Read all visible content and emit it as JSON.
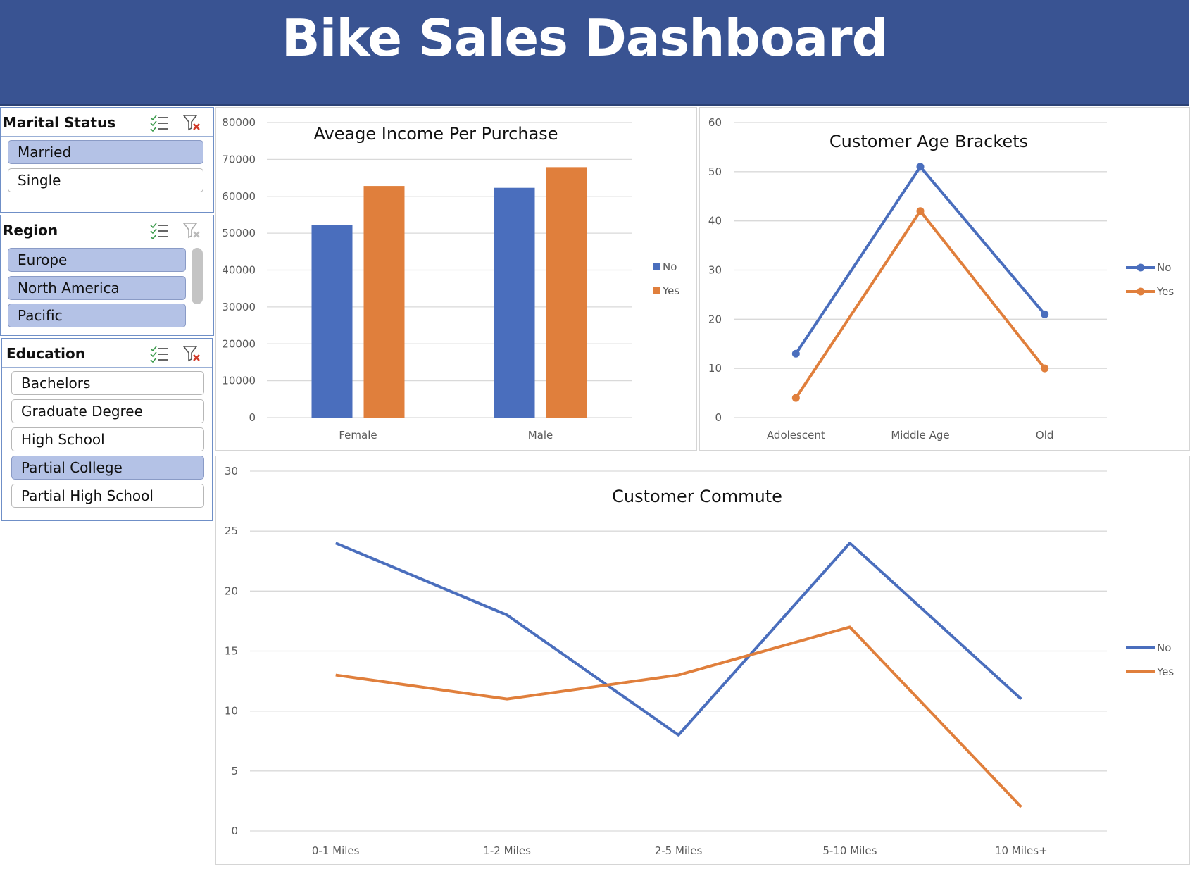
{
  "header": {
    "title": "Bike Sales Dashboard"
  },
  "colors": {
    "banner": "#395392",
    "no": "#4a6ebd",
    "yes": "#e07f3c",
    "selected": "#b4c2e6"
  },
  "slicers": {
    "marital": {
      "title": "Marital Status",
      "items": [
        {
          "label": "Married",
          "selected": true
        },
        {
          "label": "Single",
          "selected": false
        }
      ]
    },
    "region": {
      "title": "Region",
      "items": [
        {
          "label": "Europe",
          "selected": true
        },
        {
          "label": "North America",
          "selected": true
        },
        {
          "label": "Pacific",
          "selected": true
        }
      ]
    },
    "education": {
      "title": "Education",
      "items": [
        {
          "label": "Bachelors",
          "selected": false
        },
        {
          "label": "Graduate Degree",
          "selected": false
        },
        {
          "label": "High School",
          "selected": false
        },
        {
          "label": "Partial College",
          "selected": true
        },
        {
          "label": "Partial High School",
          "selected": false
        }
      ]
    },
    "icons": [
      "multi-select-icon",
      "clear-filter-icon"
    ]
  },
  "chart_data": [
    {
      "type": "bar",
      "title": "Aveage Income Per Purchase",
      "categories": [
        "Female",
        "Male"
      ],
      "series": [
        {
          "name": "No",
          "values": [
            52300,
            62300
          ]
        },
        {
          "name": "Yes",
          "values": [
            62800,
            67900
          ]
        }
      ],
      "ylim": [
        0,
        80000
      ],
      "yticks": [
        "0",
        "10000",
        "20000",
        "30000",
        "40000",
        "50000",
        "60000",
        "70000",
        "80000"
      ],
      "legend": "right",
      "grid": true
    },
    {
      "type": "line",
      "title": "Customer Age Brackets",
      "categories": [
        "Adolescent",
        "Middle Age",
        "Old"
      ],
      "series": [
        {
          "name": "No",
          "values": [
            13,
            51,
            21
          ]
        },
        {
          "name": "Yes",
          "values": [
            4,
            42,
            10
          ]
        }
      ],
      "markers": true,
      "ylim": [
        0,
        60
      ],
      "yticks": [
        "0",
        "10",
        "20",
        "30",
        "40",
        "50",
        "60"
      ],
      "legend": "right",
      "grid": true
    },
    {
      "type": "line",
      "title": "Customer Commute",
      "categories": [
        "0-1 Miles",
        "1-2 Miles",
        "2-5 Miles",
        "5-10 Miles",
        "10 Miles+"
      ],
      "series": [
        {
          "name": "No",
          "values": [
            24,
            18,
            8,
            24,
            11
          ]
        },
        {
          "name": "Yes",
          "values": [
            13,
            11,
            13,
            17,
            2
          ]
        }
      ],
      "markers": false,
      "ylim": [
        0,
        30
      ],
      "yticks": [
        "0",
        "5",
        "10",
        "15",
        "20",
        "25",
        "30"
      ],
      "legend": "right",
      "grid": true
    }
  ]
}
